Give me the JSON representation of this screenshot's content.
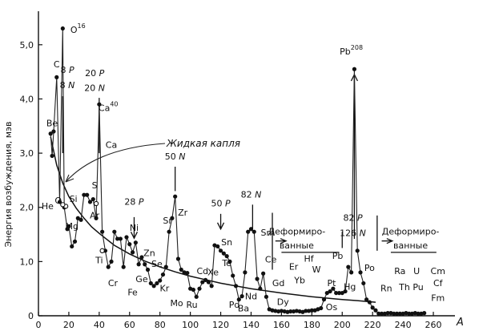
{
  "chart_data": {
    "type": "scatter",
    "title": "",
    "xlabel": "A",
    "ylabel": "Энергия возбуждения, мэв",
    "xlim": [
      0,
      270
    ],
    "ylim": [
      0,
      5.5
    ],
    "x_ticks": [
      0,
      20,
      40,
      60,
      80,
      100,
      120,
      140,
      160,
      180,
      200,
      220,
      240,
      260
    ],
    "y_ticks": [
      0,
      1.0,
      2.0,
      3.0,
      4.0,
      5.0
    ],
    "y_tick_labels": [
      "0",
      "1,0",
      "2,0",
      "3,0",
      "4,0",
      "5,0"
    ],
    "grid": false,
    "series": [
      {
        "name": "",
        "points": [
          [
            8,
            3.36
          ],
          [
            9,
            2.95
          ],
          [
            10,
            3.4
          ],
          [
            12,
            4.4
          ],
          [
            14,
            2.1
          ],
          [
            16,
            5.3
          ],
          [
            17,
            2.0
          ],
          [
            19,
            1.6
          ],
          [
            20,
            1.65
          ],
          [
            22,
            1.28
          ],
          [
            24,
            1.37
          ],
          [
            26,
            1.8
          ],
          [
            28,
            1.77
          ],
          [
            30,
            2.23
          ],
          [
            32,
            2.23
          ],
          [
            34,
            2.1
          ],
          [
            36,
            2.15
          ],
          [
            38,
            1.8
          ],
          [
            40,
            3.9
          ],
          [
            42,
            1.55
          ],
          [
            44,
            1.2
          ],
          [
            46,
            0.9
          ],
          [
            48,
            1.0
          ],
          [
            50,
            1.55
          ],
          [
            52,
            1.42
          ],
          [
            54,
            1.42
          ],
          [
            56,
            0.9
          ],
          [
            58,
            1.45
          ],
          [
            60,
            1.32
          ],
          [
            62,
            1.17
          ],
          [
            64,
            1.35
          ],
          [
            66,
            0.95
          ],
          [
            68,
            1.08
          ],
          [
            70,
            0.95
          ],
          [
            72,
            0.85
          ],
          [
            74,
            0.6
          ],
          [
            76,
            0.55
          ],
          [
            78,
            0.6
          ],
          [
            80,
            0.65
          ],
          [
            82,
            0.76
          ],
          [
            84,
            0.9
          ],
          [
            86,
            1.55
          ],
          [
            88,
            1.8
          ],
          [
            90,
            2.2
          ],
          [
            92,
            1.05
          ],
          [
            94,
            0.85
          ],
          [
            96,
            0.8
          ],
          [
            98,
            0.79
          ],
          [
            100,
            0.5
          ],
          [
            102,
            0.48
          ],
          [
            104,
            0.35
          ],
          [
            106,
            0.5
          ],
          [
            108,
            0.62
          ],
          [
            110,
            0.66
          ],
          [
            112,
            0.62
          ],
          [
            114,
            0.55
          ],
          [
            116,
            1.3
          ],
          [
            118,
            1.28
          ],
          [
            120,
            1.2
          ],
          [
            122,
            1.15
          ],
          [
            124,
            1.1
          ],
          [
            126,
            1.0
          ],
          [
            128,
            0.74
          ],
          [
            130,
            0.55
          ],
          [
            132,
            0.3
          ],
          [
            134,
            0.36
          ],
          [
            136,
            0.8
          ],
          [
            138,
            1.55
          ],
          [
            140,
            1.6
          ],
          [
            142,
            1.55
          ],
          [
            144,
            0.68
          ],
          [
            146,
            0.5
          ],
          [
            148,
            0.78
          ],
          [
            150,
            0.35
          ],
          [
            152,
            0.12
          ],
          [
            154,
            0.1
          ],
          [
            156,
            0.09
          ],
          [
            158,
            0.08
          ],
          [
            160,
            0.09
          ],
          [
            162,
            0.08
          ],
          [
            164,
            0.07
          ],
          [
            166,
            0.08
          ],
          [
            168,
            0.08
          ],
          [
            170,
            0.09
          ],
          [
            172,
            0.08
          ],
          [
            174,
            0.07
          ],
          [
            176,
            0.09
          ],
          [
            178,
            0.09
          ],
          [
            180,
            0.1
          ],
          [
            182,
            0.1
          ],
          [
            184,
            0.12
          ],
          [
            186,
            0.14
          ],
          [
            188,
            0.3
          ],
          [
            190,
            0.42
          ],
          [
            192,
            0.45
          ],
          [
            194,
            0.5
          ],
          [
            196,
            0.42
          ],
          [
            198,
            0.42
          ],
          [
            200,
            0.42
          ],
          [
            202,
            0.45
          ],
          [
            204,
            0.9
          ],
          [
            206,
            0.8
          ],
          [
            208,
            4.55
          ],
          [
            210,
            1.2
          ],
          [
            212,
            0.8
          ],
          [
            214,
            0.6
          ],
          [
            216,
            0.3
          ],
          [
            218,
            0.25
          ],
          [
            220,
            0.15
          ],
          [
            222,
            0.1
          ],
          [
            224,
            0.04
          ],
          [
            226,
            0.04
          ],
          [
            228,
            0.04
          ],
          [
            230,
            0.05
          ],
          [
            232,
            0.05
          ],
          [
            234,
            0.04
          ],
          [
            236,
            0.04
          ],
          [
            238,
            0.04
          ],
          [
            240,
            0.04
          ],
          [
            242,
            0.05
          ],
          [
            244,
            0.04
          ],
          [
            246,
            0.04
          ],
          [
            248,
            0.05
          ],
          [
            250,
            0.04
          ],
          [
            252,
            0.04
          ],
          [
            254,
            0.05
          ]
        ]
      }
    ],
    "open_points": [
      [
        18,
        2.02
      ],
      [
        16,
        2.05
      ],
      [
        38,
        2.07
      ],
      [
        42,
        1.2
      ]
    ],
    "liquid_drop_curve": [
      [
        8,
        3.3
      ],
      [
        12,
        2.78
      ],
      [
        16,
        2.45
      ],
      [
        20,
        2.2
      ],
      [
        25,
        1.98
      ],
      [
        30,
        1.8
      ],
      [
        35,
        1.64
      ],
      [
        40,
        1.52
      ],
      [
        50,
        1.3
      ],
      [
        60,
        1.14
      ],
      [
        70,
        1.01
      ],
      [
        80,
        0.9
      ],
      [
        90,
        0.81
      ],
      [
        100,
        0.73
      ],
      [
        120,
        0.6
      ],
      [
        140,
        0.5
      ],
      [
        160,
        0.42
      ],
      [
        180,
        0.35
      ],
      [
        200,
        0.3
      ],
      [
        210,
        0.28
      ],
      [
        222,
        0.25
      ]
    ],
    "curve_label": "Жидкая капля",
    "element_labels": [
      {
        "text": "Be",
        "x": 9,
        "y": 3.5
      },
      {
        "text": "C",
        "x": 12,
        "y": 4.58
      },
      {
        "text": "He",
        "x": 6,
        "y": 1.97
      },
      {
        "text": "O",
        "x": 13,
        "y": 2.07
      },
      {
        "text": "Si",
        "x": 23,
        "y": 2.1
      },
      {
        "text": "Mg",
        "x": 22,
        "y": 1.6
      },
      {
        "text": "Ar",
        "x": 37,
        "y": 1.8
      },
      {
        "text": "S",
        "x": 37,
        "y": 2.35
      },
      {
        "text": "Ca",
        "x": 48,
        "y": 3.1
      },
      {
        "text": "Ti",
        "x": 40,
        "y": 0.97
      },
      {
        "text": "Cr",
        "x": 49,
        "y": 0.55
      },
      {
        "text": "Fe",
        "x": 62,
        "y": 0.38
      },
      {
        "text": "Ge",
        "x": 68,
        "y": 0.62
      },
      {
        "text": "Zn",
        "x": 73,
        "y": 1.1
      },
      {
        "text": "Ni",
        "x": 63,
        "y": 1.57
      },
      {
        "text": "Se",
        "x": 78,
        "y": 0.9
      },
      {
        "text": "Kr",
        "x": 83,
        "y": 0.45
      },
      {
        "text": "Mo",
        "x": 91,
        "y": 0.18
      },
      {
        "text": "Sr",
        "x": 85,
        "y": 1.7
      },
      {
        "text": "Zr",
        "x": 95,
        "y": 1.85
      },
      {
        "text": "Ru",
        "x": 101,
        "y": 0.15
      },
      {
        "text": "Cd",
        "x": 108,
        "y": 0.77
      },
      {
        "text": "Pd",
        "x": 129,
        "y": 0.15
      },
      {
        "text": "Xe",
        "x": 115,
        "y": 0.75
      },
      {
        "text": "Te",
        "x": 124,
        "y": 0.92
      },
      {
        "text": "Sn",
        "x": 124,
        "y": 1.3
      },
      {
        "text": "Ba",
        "x": 135,
        "y": 0.08
      },
      {
        "text": "Nd",
        "x": 140,
        "y": 0.3
      },
      {
        "text": "Ce",
        "x": 153,
        "y": 0.98
      },
      {
        "text": "Sm",
        "x": 151,
        "y": 1.48
      },
      {
        "text": "Gd",
        "x": 158,
        "y": 0.55
      },
      {
        "text": "Dy",
        "x": 161,
        "y": 0.2
      },
      {
        "text": "Er",
        "x": 168,
        "y": 0.85
      },
      {
        "text": "Yb",
        "x": 172,
        "y": 0.6
      },
      {
        "text": "Hf",
        "x": 178,
        "y": 1.0
      },
      {
        "text": "W",
        "x": 183,
        "y": 0.8
      },
      {
        "text": "Pt",
        "x": 193,
        "y": 0.55
      },
      {
        "text": "Os",
        "x": 193,
        "y": 0.1
      },
      {
        "text": "Pb",
        "x": 197,
        "y": 1.05
      },
      {
        "text": "Hg",
        "x": 205,
        "y": 0.48
      },
      {
        "text": "Po",
        "x": 218,
        "y": 0.83
      },
      {
        "text": "Rn",
        "x": 229,
        "y": 0.45
      },
      {
        "text": "Ra",
        "x": 238,
        "y": 0.77
      },
      {
        "text": "Th",
        "x": 241,
        "y": 0.47
      },
      {
        "text": "U",
        "x": 249,
        "y": 0.77
      },
      {
        "text": "Pu",
        "x": 250,
        "y": 0.47
      },
      {
        "text": "Cm",
        "x": 263,
        "y": 0.77
      },
      {
        "text": "Cf",
        "x": 263,
        "y": 0.55
      },
      {
        "text": "Fm",
        "x": 263,
        "y": 0.27
      }
    ],
    "annotations": [
      {
        "text": "O",
        "sup": "16",
        "x": 26,
        "y": 5.22
      },
      {
        "text": "8 P",
        "x": 19,
        "y": 4.48
      },
      {
        "text": "8 N",
        "x": 19,
        "y": 4.2
      },
      {
        "text": "20 P",
        "x": 37,
        "y": 4.42
      },
      {
        "text": "20 N",
        "x": 37,
        "y": 4.15
      },
      {
        "text": "Ca",
        "sup": "40",
        "x": 46,
        "y": 3.78
      },
      {
        "text": "28 P",
        "x": 63,
        "y": 2.05
      },
      {
        "text": "50 N",
        "x": 90,
        "y": 2.88
      },
      {
        "text": "50 P",
        "x": 120,
        "y": 2.02
      },
      {
        "text": "82 N",
        "x": 140,
        "y": 2.18
      },
      {
        "text": "Pb",
        "sup": "208",
        "x": 206,
        "y": 4.82
      },
      {
        "text": "82 P",
        "x": 207,
        "y": 1.75
      },
      {
        "text": "126 N",
        "x": 207,
        "y": 1.47
      },
      {
        "text": "Деформиро-",
        "x": 170,
        "y": 1.5
      },
      {
        "text": "ванные",
        "x": 170,
        "y": 1.24
      },
      {
        "text": "Деформиро-",
        "x": 245,
        "y": 1.5
      },
      {
        "text": "ванные",
        "x": 245,
        "y": 1.24
      }
    ]
  }
}
